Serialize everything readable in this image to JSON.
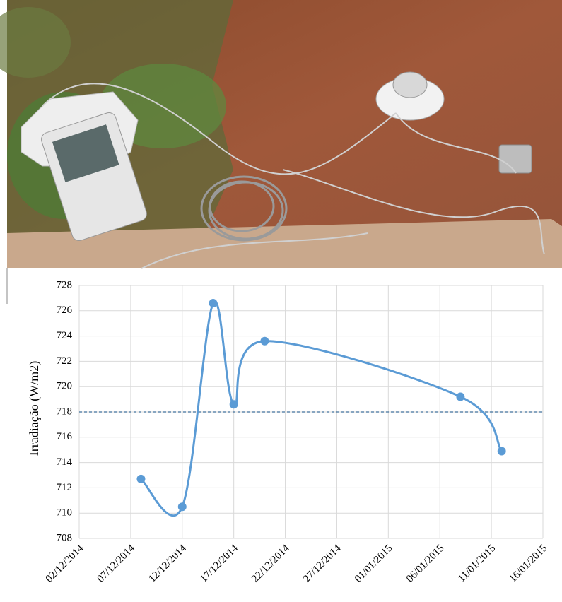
{
  "chart_data": {
    "type": "line",
    "y_label": "Irradiação (W/m2)",
    "x": [
      "08/12/2014",
      "12/12/2014",
      "15/12/2014",
      "17/12/2014",
      "20/12/2014",
      "08/01/2015",
      "12/01/2015"
    ],
    "series": [
      {
        "color": "#5b9bd5",
        "values": [
          712.7,
          710.5,
          726.6,
          718.6,
          723.6,
          719.2,
          714.9
        ]
      }
    ],
    "smooth": true,
    "reference_line": {
      "value": 718,
      "color": "#41719c",
      "dashed": true
    },
    "xlim": [
      "02/12/2014",
      "16/01/2015"
    ],
    "xticks": [
      "02/12/2014",
      "07/12/2014",
      "12/12/2014",
      "17/12/2014",
      "22/12/2014",
      "27/12/2014",
      "01/01/2015",
      "06/01/2015",
      "11/01/2015",
      "16/01/2015"
    ],
    "ylim": [
      708,
      728
    ],
    "yticks": [
      708,
      710,
      712,
      714,
      716,
      718,
      720,
      722,
      724,
      726,
      728
    ],
    "grid": true
  }
}
